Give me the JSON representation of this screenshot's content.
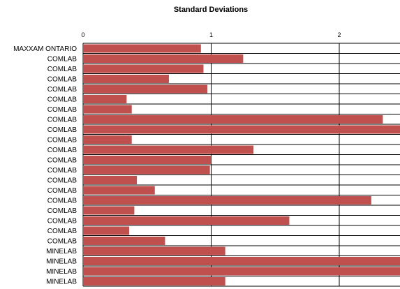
{
  "chart_data": {
    "type": "bar",
    "orientation": "horizontal",
    "title": "Standard Deviations",
    "xlabel": "",
    "ylabel": "",
    "xlim": [
      0,
      2.5
    ],
    "xticks": [
      0,
      1,
      2
    ],
    "grid": true,
    "bar_color": "#c0504d",
    "categories": [
      "MAXXAM ONTARIO",
      "COMLAB",
      "COMLAB",
      "COMLAB",
      "COMLAB",
      "COMLAB",
      "COMLAB",
      "COMLAB",
      "COMLAB",
      "COMLAB",
      "COMLAB",
      "COMLAB",
      "COMLAB",
      "COMLAB",
      "COMLAB",
      "COMLAB",
      "COMLAB",
      "COMLAB",
      "COMLAB",
      "COMLAB",
      "MINELAB",
      "MINELAB",
      "MINELAB",
      "MINELAB"
    ],
    "values": [
      0.92,
      1.25,
      0.94,
      0.67,
      0.97,
      0.34,
      0.38,
      2.34,
      2.5,
      0.38,
      1.33,
      1.0,
      0.99,
      0.42,
      0.56,
      2.25,
      0.4,
      1.61,
      0.36,
      0.64,
      1.11,
      2.5,
      2.5,
      1.11
    ]
  }
}
